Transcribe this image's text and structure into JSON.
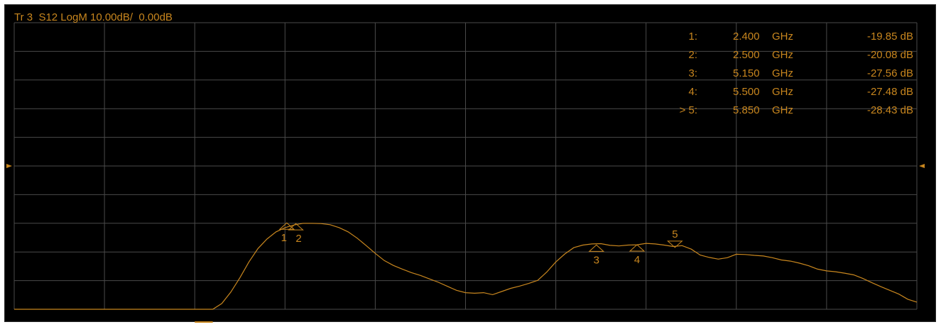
{
  "colors": {
    "background": "#000000",
    "grid": "#4a4a4a",
    "trace": "#c8861e",
    "text": "#c8861e"
  },
  "trace_header": "Tr 3  S12 LogM 10.00dB/  0.00dB",
  "markers": [
    {
      "id": "1",
      "label": "1:",
      "freq": "2.400",
      "unit": "GHz",
      "value": "-19.85 dB"
    },
    {
      "id": "2",
      "label": "2:",
      "freq": "2.500",
      "unit": "GHz",
      "value": "-20.08 dB"
    },
    {
      "id": "3",
      "label": "3:",
      "freq": "5.150",
      "unit": "GHz",
      "value": "-27.56 dB"
    },
    {
      "id": "4",
      "label": "4:",
      "freq": "5.500",
      "unit": "GHz",
      "value": "-27.48 dB"
    },
    {
      "id": "5",
      "label": "> 5:",
      "freq": "5.850",
      "unit": "GHz",
      "value": "-28.43 dB"
    }
  ],
  "chart_data": {
    "type": "line",
    "title": "Tr 3  S12 LogM 10.00dB/  0.00dB",
    "scale_db_per_div": 10,
    "reference_db": 0,
    "x_divisions": 10,
    "y_divisions": 10,
    "xlim": [
      0,
      10
    ],
    "ylim": [
      -50,
      50
    ],
    "grid": true,
    "series": [
      {
        "points": [
          [
            0,
            -50.0
          ],
          [
            1,
            -50.0
          ],
          [
            2,
            -50.0
          ],
          [
            2.2,
            -50.0
          ],
          [
            2.3,
            -48.0
          ],
          [
            2.4,
            -44.0
          ],
          [
            2.5,
            -39.0
          ],
          [
            2.6,
            -33.5
          ],
          [
            2.7,
            -28.8
          ],
          [
            2.8,
            -25.5
          ],
          [
            2.9,
            -23.0
          ],
          [
            3.0,
            -21.5
          ],
          [
            3.1,
            -20.6
          ],
          [
            3.2,
            -20.0
          ],
          [
            3.3,
            -20.0
          ],
          [
            3.4,
            -20.1
          ],
          [
            3.5,
            -20.5
          ],
          [
            3.6,
            -21.5
          ],
          [
            3.7,
            -23.0
          ],
          [
            3.8,
            -25.2
          ],
          [
            3.9,
            -27.8
          ],
          [
            4.0,
            -30.5
          ],
          [
            4.1,
            -33.0
          ],
          [
            4.2,
            -34.7
          ],
          [
            4.3,
            -36.0
          ],
          [
            4.4,
            -37.2
          ],
          [
            4.5,
            -38.2
          ],
          [
            4.6,
            -39.4
          ],
          [
            4.7,
            -40.6
          ],
          [
            4.8,
            -42.0
          ],
          [
            4.9,
            -43.4
          ],
          [
            5.0,
            -44.2
          ],
          [
            5.1,
            -44.4
          ],
          [
            5.2,
            -44.2
          ],
          [
            5.3,
            -44.9
          ],
          [
            5.4,
            -43.8
          ],
          [
            5.5,
            -42.7
          ],
          [
            5.6,
            -41.9
          ],
          [
            5.7,
            -41.0
          ],
          [
            5.8,
            -39.9
          ],
          [
            5.9,
            -37.0
          ],
          [
            6.0,
            -33.5
          ],
          [
            6.1,
            -30.7
          ],
          [
            6.2,
            -28.5
          ],
          [
            6.3,
            -27.6
          ],
          [
            6.4,
            -27.2
          ],
          [
            6.5,
            -27.1
          ],
          [
            6.6,
            -27.7
          ],
          [
            6.7,
            -27.9
          ],
          [
            6.8,
            -27.6
          ],
          [
            6.9,
            -27.5
          ],
          [
            7.0,
            -27.0
          ],
          [
            7.1,
            -27.2
          ],
          [
            7.2,
            -27.6
          ],
          [
            7.3,
            -28.1
          ],
          [
            7.4,
            -27.8
          ],
          [
            7.5,
            -29.0
          ],
          [
            7.6,
            -31.1
          ],
          [
            7.7,
            -31.9
          ],
          [
            7.8,
            -32.5
          ],
          [
            7.9,
            -32.0
          ],
          [
            8.0,
            -30.8
          ],
          [
            8.1,
            -30.9
          ],
          [
            8.2,
            -31.2
          ],
          [
            8.3,
            -31.4
          ],
          [
            8.4,
            -32.0
          ],
          [
            8.5,
            -32.8
          ],
          [
            8.6,
            -33.2
          ],
          [
            8.7,
            -33.9
          ],
          [
            8.8,
            -34.8
          ],
          [
            8.9,
            -36.0
          ],
          [
            9.0,
            -36.6
          ],
          [
            9.1,
            -36.9
          ],
          [
            9.2,
            -37.4
          ],
          [
            9.3,
            -38.0
          ],
          [
            9.4,
            -39.2
          ],
          [
            9.5,
            -40.7
          ],
          [
            9.6,
            -42.1
          ],
          [
            9.7,
            -43.4
          ],
          [
            9.8,
            -44.7
          ],
          [
            9.9,
            -46.5
          ],
          [
            10.0,
            -47.5
          ]
        ]
      }
    ],
    "markers": [
      {
        "id": "1",
        "x": 3.02,
        "value_db": -19.85
      },
      {
        "id": "2",
        "x": 3.12,
        "value_db": -20.08
      },
      {
        "id": "3",
        "x": 6.45,
        "value_db": -27.56
      },
      {
        "id": "4",
        "x": 6.9,
        "value_db": -27.48
      },
      {
        "id": "5",
        "x": 7.32,
        "value_db": -28.43
      }
    ]
  }
}
